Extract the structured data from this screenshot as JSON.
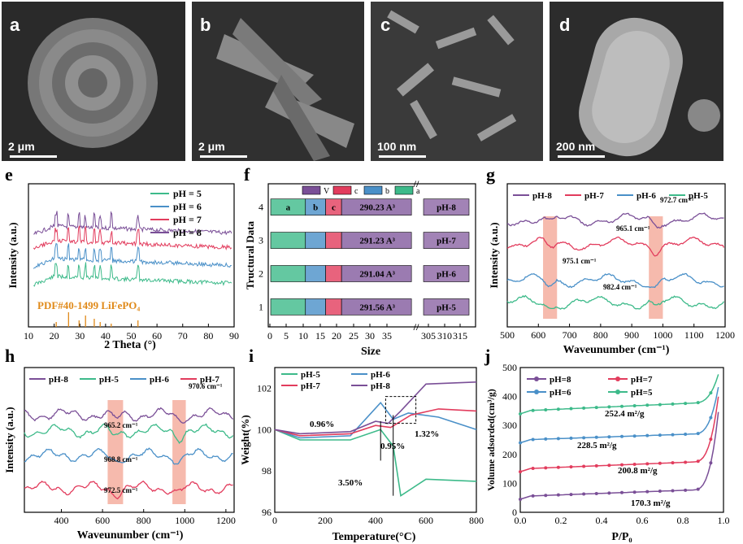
{
  "sem": [
    {
      "label": "a",
      "scale": "2 μm"
    },
    {
      "label": "b",
      "scale": "2 μm"
    },
    {
      "label": "c",
      "scale": "100 nm"
    },
    {
      "label": "d",
      "scale": "200 nm"
    }
  ],
  "chart_data": [
    {
      "id": "e",
      "type": "line",
      "label": "e",
      "xlabel": "2 Theta (°)",
      "ylabel": "Intensity (a.u.)",
      "xlim": [
        10,
        90
      ],
      "xticks": [
        10,
        20,
        30,
        40,
        50,
        60,
        70,
        80,
        90
      ],
      "series": [
        {
          "name": "pH = 5",
          "color": "#3dba8a"
        },
        {
          "name": "pH = 6",
          "color": "#4a90c8"
        },
        {
          "name": "pH = 7",
          "color": "#e23c5d"
        },
        {
          "name": "pH = 8",
          "color": "#7a4f97"
        }
      ],
      "reference": {
        "name": "PDF#40-1499 LiFePO₄",
        "color": "#e08a1a",
        "peaks": [
          20.8,
          25.6,
          29.7,
          32.2,
          35.6,
          37.9,
          42.2,
          52.6
        ]
      }
    },
    {
      "id": "f",
      "type": "bar",
      "label": "f",
      "ylabel": "Tructural Data",
      "xlabel": "Size",
      "xticks": [
        "0",
        "5",
        "10",
        "15",
        "20",
        "25",
        "30",
        "35",
        "305",
        "310",
        "315"
      ],
      "yticks": [
        "1",
        "2",
        "3",
        "4"
      ],
      "legend": [
        "V",
        "c",
        "b",
        "a"
      ],
      "colors": {
        "a": "#3dba8a",
        "b": "#4a90c8",
        "c": "#e23c5d",
        "V": "#7a4f97"
      },
      "rows": [
        {
          "y": 4,
          "a": 10.3,
          "b": 6.0,
          "c": 4.7,
          "V": "290.23 A³",
          "ph": "pH-8",
          "labels": [
            "a",
            "b",
            "c"
          ]
        },
        {
          "y": 3,
          "a": 10.3,
          "b": 6.0,
          "c": 4.7,
          "V": "291.23 A³",
          "ph": "pH-7",
          "labels": []
        },
        {
          "y": 2,
          "a": 10.3,
          "b": 6.0,
          "c": 4.7,
          "V": "291.04 A³",
          "ph": "pH-6",
          "labels": []
        },
        {
          "y": 1,
          "a": 10.3,
          "b": 6.0,
          "c": 4.7,
          "V": "291.56 A³",
          "ph": "pH-5",
          "labels": []
        }
      ]
    },
    {
      "id": "g",
      "type": "line",
      "label": "g",
      "xlabel": "Waveunumber (cm⁻¹)",
      "ylabel": "Intensity (a.u.)",
      "xlim": [
        500,
        1200
      ],
      "xticks": [
        500,
        600,
        700,
        800,
        900,
        1000,
        1100,
        1200
      ],
      "series": [
        {
          "name": "pH-8",
          "color": "#7a4f97"
        },
        {
          "name": "pH-7",
          "color": "#e23c5d"
        },
        {
          "name": "pH-6",
          "color": "#4a90c8"
        },
        {
          "name": "pH-5",
          "color": "#3dba8a"
        }
      ],
      "annotations": [
        "972.7 cm⁻¹",
        "965.1 cm⁻¹",
        "975.1 cm⁻¹",
        "982.4 cm⁻¹"
      ],
      "bands": [
        [
          615,
          660
        ],
        [
          955,
          1000
        ]
      ]
    },
    {
      "id": "h",
      "type": "line",
      "label": "h",
      "xlabel": "Waveunumber (cm⁻¹)",
      "ylabel": "Intensity (a.u.)",
      "xlim": [
        220,
        1240
      ],
      "xticks": [
        400,
        600,
        800,
        1000,
        1200
      ],
      "series": [
        {
          "name": "pH-8",
          "color": "#7a4f97"
        },
        {
          "name": "pH-5",
          "color": "#3dba8a"
        },
        {
          "name": "pH-6",
          "color": "#4a90c8"
        },
        {
          "name": "pH-7",
          "color": "#e23c5d"
        }
      ],
      "annotations": [
        "970.6 cm⁻¹",
        "965.2 cm⁻¹",
        "968.8 cm⁻¹",
        "972.5 cm⁻¹"
      ],
      "bands": [
        [
          625,
          700
        ],
        [
          940,
          1005
        ]
      ]
    },
    {
      "id": "i",
      "type": "line",
      "label": "i",
      "xlabel": "Temperature(°C)",
      "ylabel": "Weight(%)",
      "xlim": [
        0,
        800
      ],
      "ylim": [
        96,
        103
      ],
      "xticks": [
        0,
        200,
        400,
        600,
        800
      ],
      "yticks": [
        96,
        98,
        100,
        102
      ],
      "series": [
        {
          "name": "pH-5",
          "color": "#3dba8a"
        },
        {
          "name": "pH-6",
          "color": "#4a90c8"
        },
        {
          "name": "pH-7",
          "color": "#e23c5d"
        },
        {
          "name": "pH-8",
          "color": "#7a4f97"
        }
      ],
      "annotations": [
        "0.96%",
        "0.95%",
        "1.32%",
        "3.50%"
      ]
    },
    {
      "id": "j",
      "type": "line",
      "label": "j",
      "xlabel": "P/P₀",
      "ylabel": "Volume adsorded(cm³/g)",
      "xlim": [
        0,
        1.0
      ],
      "ylim": [
        0,
        500
      ],
      "xticks": [
        0.0,
        0.2,
        0.4,
        0.6,
        0.8,
        1.0
      ],
      "yticks": [
        0,
        100,
        200,
        300,
        400,
        500
      ],
      "series": [
        {
          "name": "pH=8",
          "color": "#7a4f97",
          "area": "170.3 m²/g"
        },
        {
          "name": "pH=7",
          "color": "#e23c5d",
          "area": "200.8 m²/g"
        },
        {
          "name": "pH=6",
          "color": "#4a90c8",
          "area": "228.5 m²/g"
        },
        {
          "name": "pH=5",
          "color": "#3dba8a",
          "area": "252.4 m²/g"
        }
      ]
    }
  ]
}
